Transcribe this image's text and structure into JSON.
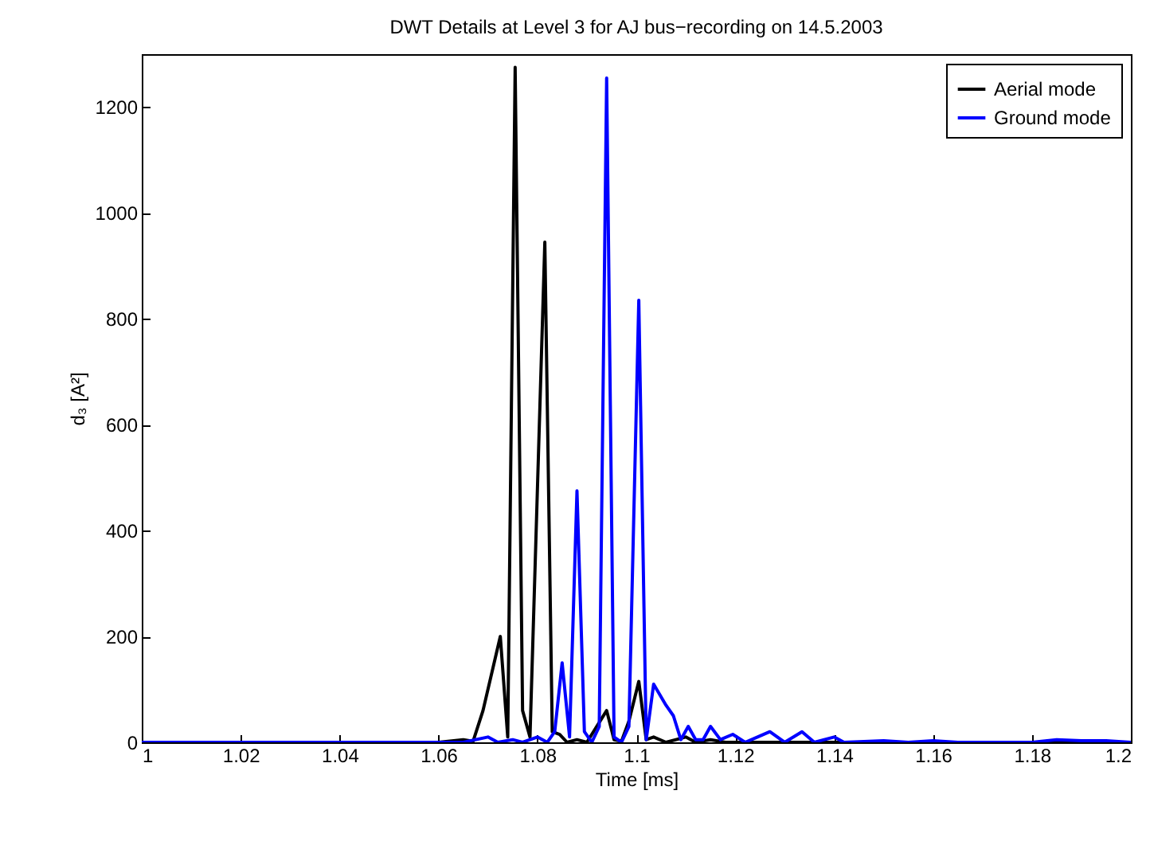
{
  "chart_data": {
    "type": "line",
    "title": "DWT Details at  Level 3 for AJ bus−recording on 14.5.2003",
    "xlabel": "Time [ms]",
    "ylabel": "d₃ [A²]",
    "xlim": [
      1,
      1.2
    ],
    "xticks": [
      1,
      1.02,
      1.04,
      1.06,
      1.08,
      1.1,
      1.12,
      1.14,
      1.16,
      1.18,
      1.2
    ],
    "ylim": [
      0,
      1300
    ],
    "yticks": [
      0,
      200,
      400,
      600,
      800,
      1000,
      1200
    ],
    "legend": "top right",
    "grid": false,
    "series": [
      {
        "name": "Aerial  mode",
        "color": "#000000",
        "x": [
          1.0,
          1.06,
          1.065,
          1.067,
          1.069,
          1.0725,
          1.074,
          1.0755,
          1.077,
          1.0785,
          1.0815,
          1.083,
          1.0845,
          1.086,
          1.088,
          1.09,
          1.094,
          1.0955,
          1.097,
          1.0985,
          1.1005,
          1.102,
          1.1035,
          1.106,
          1.11,
          1.112,
          1.115,
          1.118,
          1.2
        ],
        "values": [
          0,
          0,
          5,
          2,
          60,
          200,
          10,
          1275,
          60,
          10,
          945,
          20,
          15,
          0,
          5,
          0,
          60,
          5,
          2,
          40,
          115,
          5,
          10,
          0,
          10,
          0,
          5,
          0,
          0
        ]
      },
      {
        "name": "Ground mode",
        "color": "#0000ff",
        "x": [
          1.0,
          1.065,
          1.07,
          1.072,
          1.075,
          1.077,
          1.08,
          1.082,
          1.0835,
          1.085,
          1.0865,
          1.088,
          1.0895,
          1.091,
          1.0925,
          1.094,
          1.0955,
          1.097,
          1.0985,
          1.1005,
          1.102,
          1.1035,
          1.106,
          1.1075,
          1.109,
          1.1105,
          1.112,
          1.1135,
          1.115,
          1.117,
          1.1195,
          1.122,
          1.1245,
          1.127,
          1.13,
          1.1335,
          1.136,
          1.14,
          1.142,
          1.15,
          1.155,
          1.16,
          1.165,
          1.18,
          1.185,
          1.19,
          1.195,
          1.2
        ],
        "values": [
          0,
          0,
          10,
          0,
          5,
          0,
          10,
          0,
          20,
          150,
          10,
          475,
          20,
          0,
          30,
          1255,
          10,
          0,
          30,
          835,
          5,
          110,
          70,
          50,
          5,
          30,
          5,
          5,
          30,
          5,
          15,
          0,
          10,
          20,
          0,
          20,
          0,
          10,
          0,
          3,
          0,
          3,
          0,
          0,
          5,
          3,
          3,
          0
        ]
      }
    ]
  }
}
